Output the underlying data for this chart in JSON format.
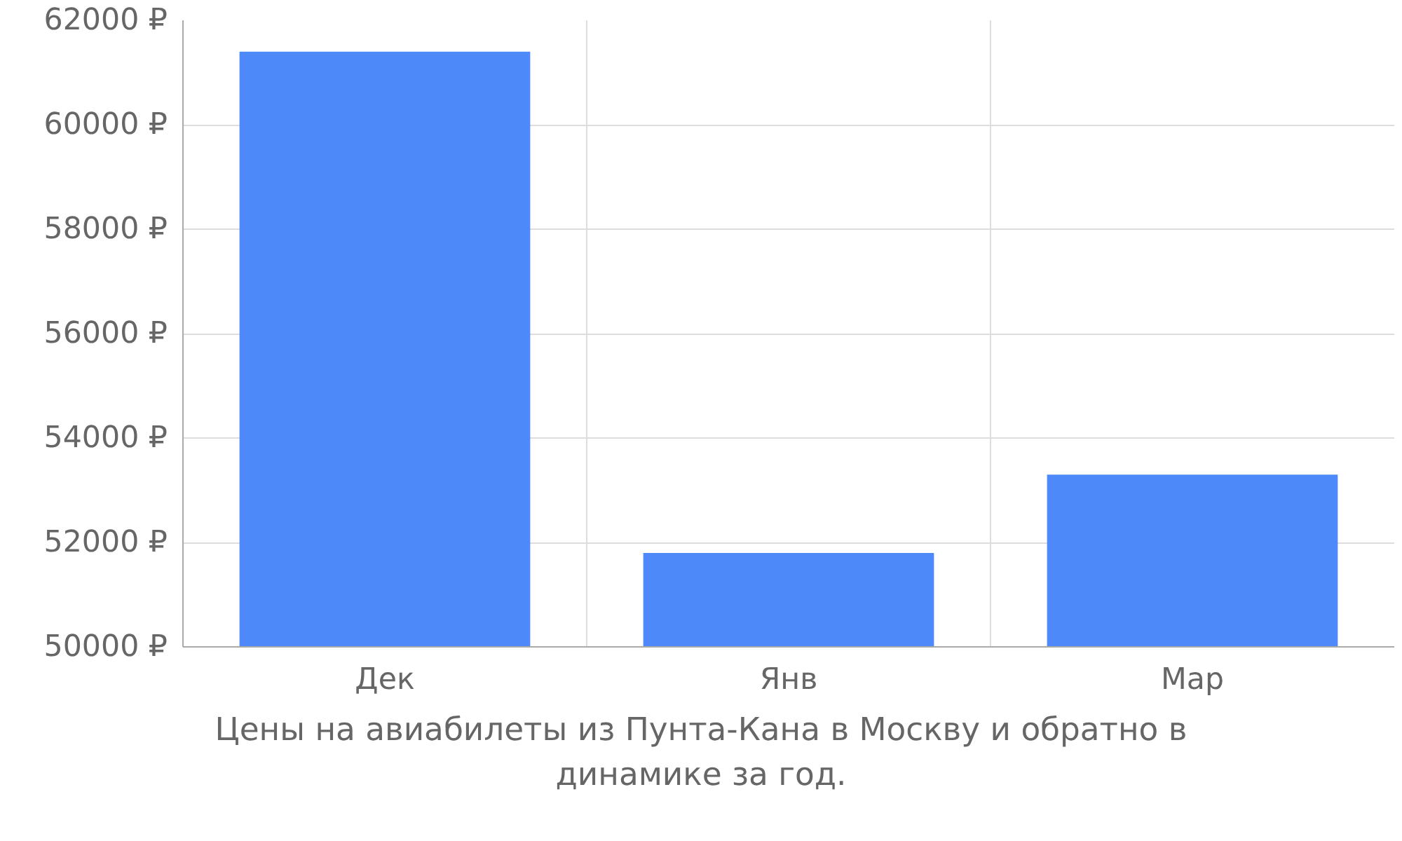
{
  "chart_data": {
    "type": "bar",
    "categories": [
      "Дек",
      "Янв",
      "Мар"
    ],
    "values": [
      61400,
      51800,
      53300
    ],
    "color": "#4d89f9",
    "ylim": [
      50000,
      62000
    ],
    "yticks": [
      {
        "value": 50000,
        "label": "50000 ₽"
      },
      {
        "value": 52000,
        "label": "52000 ₽"
      },
      {
        "value": 54000,
        "label": "54000 ₽"
      },
      {
        "value": 56000,
        "label": "56000 ₽"
      },
      {
        "value": 58000,
        "label": "58000 ₽"
      },
      {
        "value": 60000,
        "label": "60000 ₽"
      },
      {
        "value": 62000,
        "label": "62000 ₽"
      }
    ],
    "grid": true,
    "annotations": [
      "Цены на авиабилеты из Пунта-Кана в Москву и обратно в динамике за год."
    ]
  }
}
